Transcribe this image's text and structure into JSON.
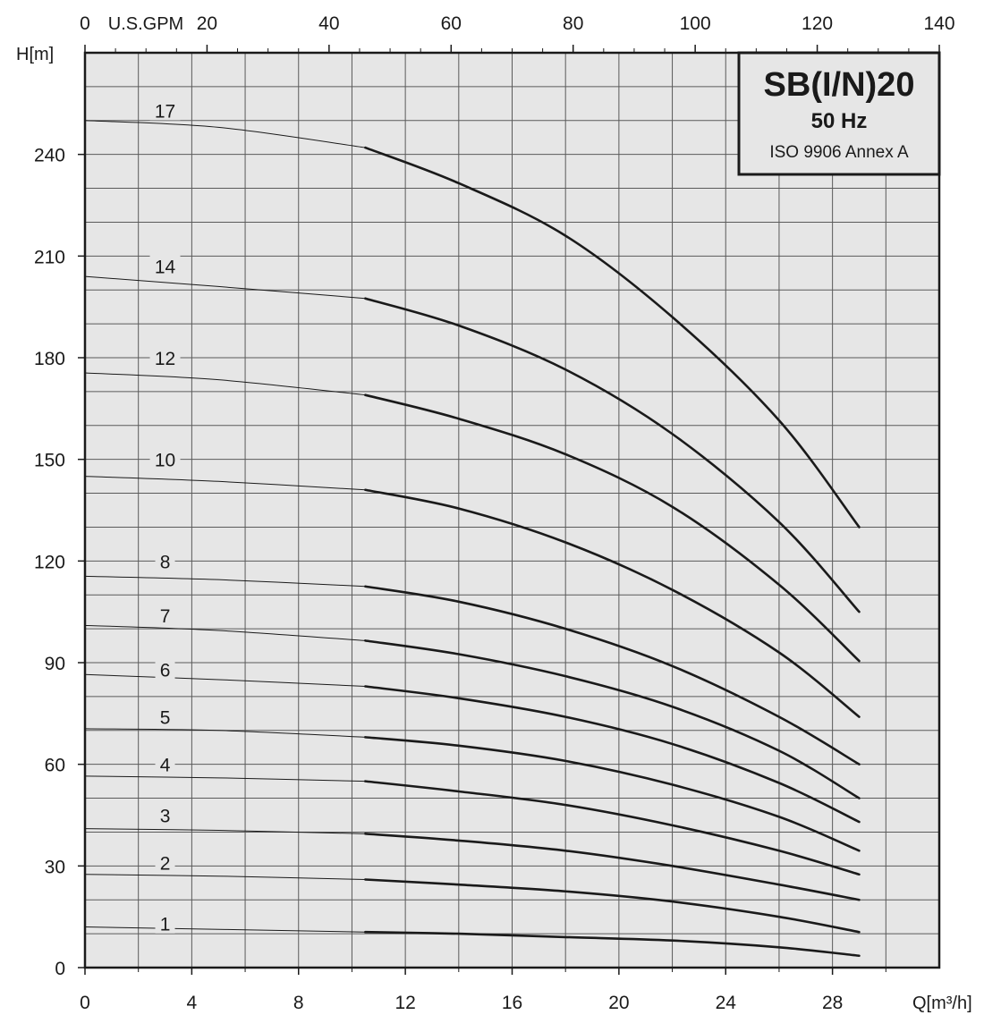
{
  "chart_data": {
    "type": "line",
    "title": "SB(I/N)20",
    "subtitle": "50 Hz",
    "standard": "ISO 9906 Annex A",
    "xlabel": "Q[m³/h]",
    "ylabel": "H[m]",
    "x2label": "U.S.GPM",
    "xlim": [
      0,
      32
    ],
    "ylim": [
      0,
      270
    ],
    "x2lim": [
      0,
      140
    ],
    "x_ticks": [
      0,
      4,
      8,
      12,
      16,
      20,
      24,
      28
    ],
    "x_minor_grid_step": 2,
    "y_ticks": [
      0,
      30,
      60,
      90,
      120,
      150,
      180,
      210,
      240
    ],
    "y_minor_grid_step": 10,
    "x2_ticks": [
      0,
      20,
      40,
      60,
      80,
      100,
      120,
      140
    ],
    "x2_minor_step": 5,
    "grid": true,
    "duty_range_start_x": 10.5,
    "colors": {
      "plot_background": "#e6e6e6",
      "grid": "#5a5a5a",
      "curve": "#1a1a1a",
      "axis": "#1a1a1a",
      "title_box_fill": "#e6e6e6"
    },
    "series": [
      {
        "name": "1",
        "label_x": 3,
        "label_y": 13,
        "x": [
          0,
          10.5,
          14,
          18,
          22,
          26,
          29
        ],
        "y": [
          12,
          10.5,
          10,
          9,
          8,
          6,
          3.5
        ]
      },
      {
        "name": "2",
        "label_x": 3,
        "label_y": 31,
        "x": [
          0,
          5,
          10.5,
          14,
          18,
          22,
          26,
          29
        ],
        "y": [
          27.5,
          27,
          26,
          24.5,
          22.5,
          19.5,
          15,
          10.5
        ]
      },
      {
        "name": "3",
        "label_x": 3,
        "label_y": 45,
        "x": [
          0,
          5,
          10.5,
          14,
          18,
          22,
          26,
          29
        ],
        "y": [
          41,
          40.5,
          39.5,
          37.5,
          34.5,
          30,
          24.5,
          20
        ]
      },
      {
        "name": "4",
        "label_x": 3,
        "label_y": 60,
        "x": [
          0,
          5,
          10.5,
          14,
          18,
          22,
          26,
          29
        ],
        "y": [
          56.5,
          56,
          55,
          52,
          48,
          42,
          34.5,
          27.5
        ]
      },
      {
        "name": "5",
        "label_x": 3,
        "label_y": 74,
        "x": [
          0,
          5,
          10.5,
          14,
          18,
          22,
          26,
          29
        ],
        "y": [
          70.5,
          70,
          68,
          65.5,
          61,
          54,
          44.5,
          34.5
        ]
      },
      {
        "name": "6",
        "label_x": 3,
        "label_y": 88,
        "x": [
          0,
          5,
          10.5,
          14,
          18,
          22,
          26,
          29
        ],
        "y": [
          86.5,
          85,
          83,
          79.5,
          74,
          66,
          54.5,
          43
        ]
      },
      {
        "name": "7",
        "label_x": 3,
        "label_y": 104,
        "x": [
          0,
          5,
          10.5,
          14,
          18,
          22,
          26,
          29
        ],
        "y": [
          101,
          99.5,
          96.5,
          92.5,
          86,
          77,
          64,
          50
        ]
      },
      {
        "name": "8",
        "label_x": 3,
        "label_y": 120,
        "x": [
          0,
          5,
          10.5,
          14,
          18,
          22,
          26,
          29
        ],
        "y": [
          115.5,
          114.5,
          112.5,
          108,
          100,
          89,
          74,
          60
        ]
      },
      {
        "name": "10",
        "label_x": 3,
        "label_y": 150,
        "x": [
          0,
          5,
          10.5,
          14,
          18,
          22,
          26,
          29
        ],
        "y": [
          145,
          143.5,
          141,
          135.5,
          125.5,
          111.5,
          93,
          74
        ]
      },
      {
        "name": "12",
        "label_x": 3,
        "label_y": 180,
        "x": [
          0,
          5,
          10.5,
          14,
          18,
          22,
          26,
          29
        ],
        "y": [
          175.5,
          173.5,
          169,
          162,
          151.5,
          136,
          113,
          90.5
        ]
      },
      {
        "name": "14",
        "label_x": 3,
        "label_y": 207,
        "x": [
          0,
          5,
          10.5,
          14,
          18,
          22,
          26,
          29
        ],
        "y": [
          204,
          201,
          197.5,
          189.5,
          176.5,
          157.5,
          131.5,
          105
        ]
      },
      {
        "name": "17",
        "label_x": 3,
        "label_y": 253,
        "x": [
          0,
          5,
          10.5,
          14,
          18,
          22,
          26,
          29
        ],
        "y": [
          250,
          248,
          242,
          231.5,
          216,
          192,
          161.5,
          130
        ]
      }
    ]
  }
}
